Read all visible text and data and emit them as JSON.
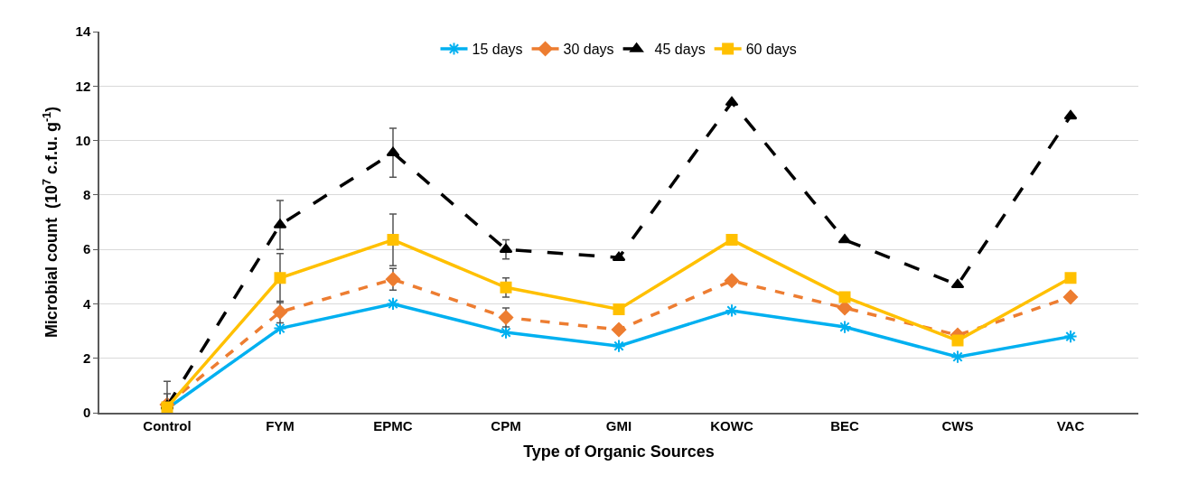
{
  "chart_data": {
    "type": "line",
    "xlabel": "Type of Organic Sources",
    "ylabel": "Microbial count  (10$^{7}$ c.f.u. g$^{-1}$)",
    "categories": [
      "Control",
      "FYM",
      "EPMC",
      "CPM",
      "GMI",
      "KOWC",
      "BEC",
      "CWS",
      "VAC"
    ],
    "ylim": [
      0,
      14
    ],
    "yticks": [
      0,
      2,
      4,
      6,
      8,
      10,
      12,
      14
    ],
    "grid": "y",
    "legend": "top",
    "series": [
      {
        "name": "15 days",
        "color": "#00b0f0",
        "marker": "cross",
        "line_style": "solid",
        "values": [
          0.15,
          3.1,
          4.0,
          2.95,
          2.45,
          3.75,
          3.15,
          2.05,
          2.8
        ]
      },
      {
        "name": "30 days",
        "color": "#ed7d31",
        "marker": "diamond",
        "line_style": "dashed",
        "values": [
          0.3,
          3.7,
          4.9,
          3.5,
          3.05,
          4.85,
          3.85,
          2.85,
          4.25
        ],
        "errors": [
          0.4,
          0.4,
          0.4,
          0.35,
          null,
          null,
          null,
          null,
          null
        ]
      },
      {
        "name": "45 days",
        "color": "#000000",
        "marker": "triangle",
        "line_style": "longdash",
        "values": [
          0.25,
          6.9,
          9.55,
          6.0,
          5.7,
          11.4,
          6.35,
          4.7,
          10.9
        ],
        "errors": [
          0.9,
          0.9,
          0.9,
          0.35,
          null,
          null,
          null,
          null,
          null
        ]
      },
      {
        "name": "60 days",
        "color": "#ffc000",
        "marker": "square",
        "line_style": "solid",
        "values": [
          0.2,
          4.95,
          6.35,
          4.6,
          3.8,
          6.35,
          4.25,
          2.65,
          4.95
        ],
        "errors": [
          null,
          0.9,
          0.95,
          0.35,
          null,
          null,
          null,
          null,
          null
        ]
      }
    ]
  }
}
